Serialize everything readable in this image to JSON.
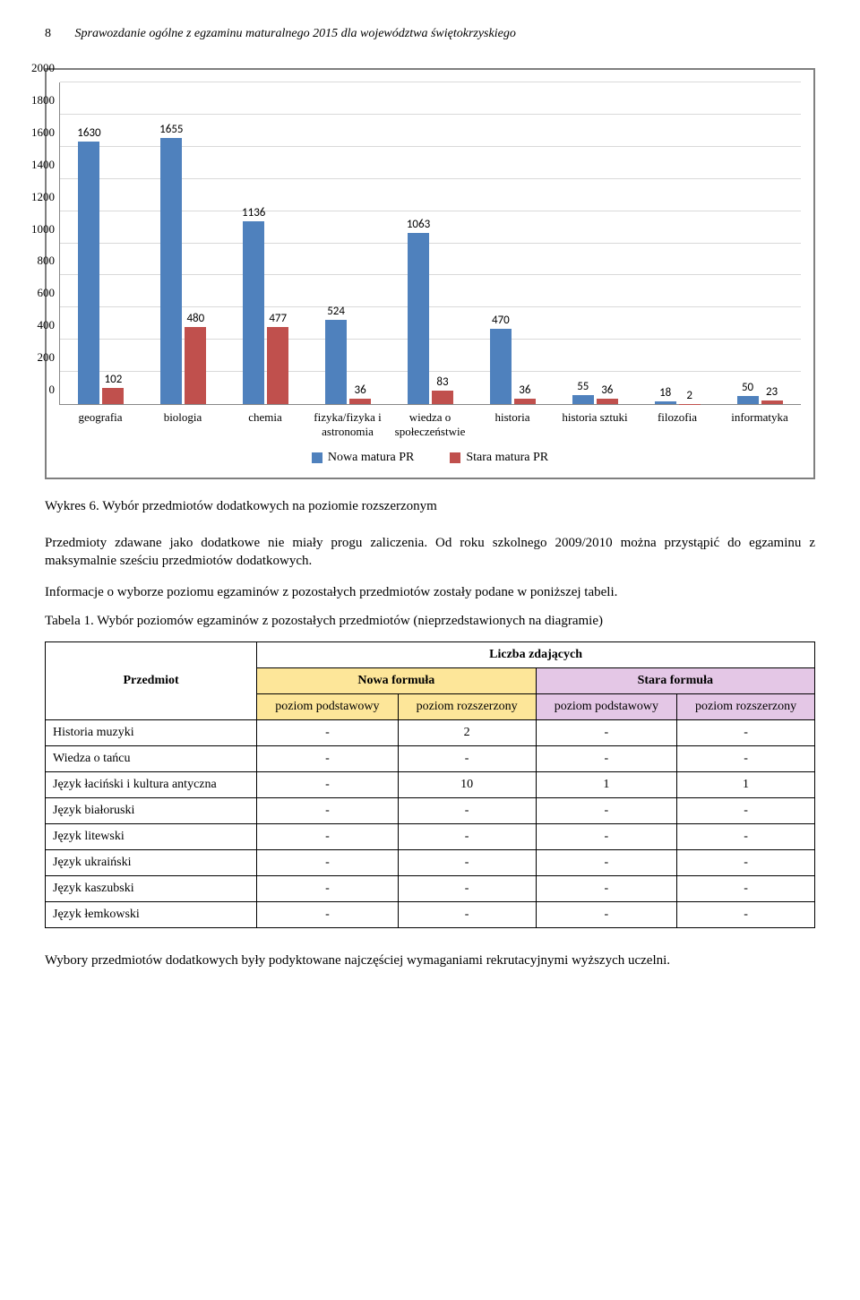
{
  "header": {
    "page_number": "8",
    "title": "Sprawozdanie ogólne z egzaminu maturalnego 2015 dla województwa świętokrzyskiego"
  },
  "chart": {
    "type": "bar",
    "ymax": 2000,
    "ytick_step": 200,
    "yticks": [
      "0",
      "200",
      "400",
      "600",
      "800",
      "1000",
      "1200",
      "1400",
      "1600",
      "1800",
      "2000"
    ],
    "series": [
      {
        "name": "Nowa matura PR",
        "color": "#4f81bd"
      },
      {
        "name": "Stara matura PR",
        "color": "#c0504d"
      }
    ],
    "categories": [
      {
        "label": "geografia",
        "a": 1630,
        "b": 102
      },
      {
        "label": "biologia",
        "a": 1655,
        "b": 480
      },
      {
        "label": "chemia",
        "a": 1136,
        "b": 477
      },
      {
        "label": "fizyka/fizyka i astronomia",
        "a": 524,
        "b": 36
      },
      {
        "label": "wiedza o społeczeństwie",
        "a": 1063,
        "b": 83
      },
      {
        "label": "historia",
        "a": 470,
        "b": 36
      },
      {
        "label": "historia sztuki",
        "a": 55,
        "b": 36
      },
      {
        "label": "filozofia",
        "a": 18,
        "b": 2
      },
      {
        "label": "informatyka",
        "a": 50,
        "b": 23
      }
    ],
    "grid_color": "#d9d9d9",
    "axis_color": "#888888",
    "label_font": "Calibri"
  },
  "caption_chart": "Wykres 6. Wybór przedmiotów dodatkowych na poziomie rozszerzonym",
  "para1": "Przedmioty zdawane jako dodatkowe nie miały progu zaliczenia. Od roku szkolnego 2009/2010 można przystąpić do egzaminu z maksymalnie sześciu przedmiotów dodatkowych.",
  "para2": "Informacje o wyborze poziomu egzaminów z pozostałych przedmiotów zostały podane w poniższej tabeli.",
  "table_caption": "Tabela 1. Wybór poziomów egzaminów z pozostałych przedmiotów (nieprzedstawionych na diagramie)",
  "table": {
    "head": {
      "przedmiot": "Przedmiot",
      "liczba": "Liczba zdających",
      "nowa": "Nowa formuła",
      "stara": "Stara formuła",
      "pp": "poziom podstawowy",
      "pr": "poziom rozszerzony"
    },
    "colors": {
      "nowa_bg": "#fde699",
      "stara_bg": "#e4c7e6"
    },
    "rows": [
      {
        "name": "Historia muzyki",
        "c": [
          "-",
          "2",
          "-",
          "-"
        ]
      },
      {
        "name": "Wiedza o tańcu",
        "c": [
          "-",
          "-",
          "-",
          "-"
        ]
      },
      {
        "name": "Język łaciński i kultura antyczna",
        "c": [
          "-",
          "10",
          "1",
          "1"
        ]
      },
      {
        "name": "Język białoruski",
        "c": [
          "-",
          "-",
          "-",
          "-"
        ]
      },
      {
        "name": "Język litewski",
        "c": [
          "-",
          "-",
          "-",
          "-"
        ]
      },
      {
        "name": "Język ukraiński",
        "c": [
          "-",
          "-",
          "-",
          "-"
        ]
      },
      {
        "name": "Język kaszubski",
        "c": [
          "-",
          "-",
          "-",
          "-"
        ]
      },
      {
        "name": "Język łemkowski",
        "c": [
          "-",
          "-",
          "-",
          "-"
        ]
      }
    ]
  },
  "para3": "Wybory przedmiotów dodatkowych były podyktowane najczęściej wymaganiami rekrutacyjnymi wyższych uczelni."
}
